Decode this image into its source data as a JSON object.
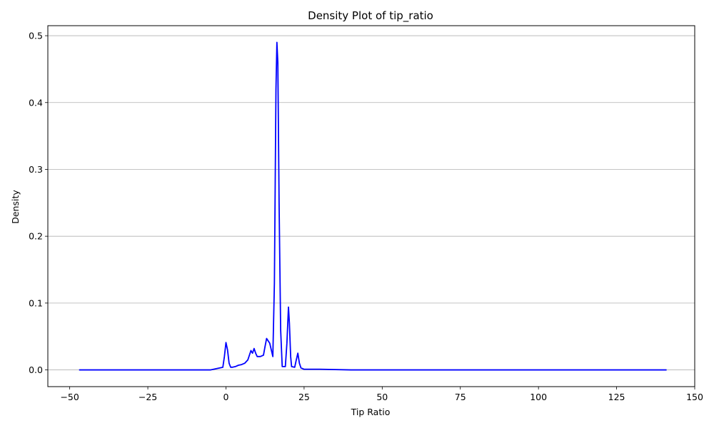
{
  "chart_data": {
    "type": "line",
    "title": "Density Plot of tip_ratio",
    "xlabel": "Tip Ratio",
    "ylabel": "Density",
    "xlim": [
      -57,
      150
    ],
    "ylim": [
      -0.025,
      0.515
    ],
    "xticks": [
      -50,
      -25,
      0,
      25,
      50,
      75,
      100,
      125,
      150
    ],
    "xtick_labels": [
      "−50",
      "−25",
      "0",
      "25",
      "50",
      "75",
      "100",
      "125",
      "150"
    ],
    "yticks": [
      0.0,
      0.1,
      0.2,
      0.3,
      0.4,
      0.5
    ],
    "ytick_labels": [
      "0.0",
      "0.1",
      "0.2",
      "0.3",
      "0.4",
      "0.5"
    ],
    "grid": "y",
    "legend": "none",
    "series": [
      {
        "color": "#0000ff",
        "x": [
          -47,
          -20,
          -5,
          -1,
          -0.5,
          0,
          0.5,
          1,
          1.5,
          2,
          3,
          4,
          5,
          6,
          7,
          8,
          8.5,
          9,
          9.5,
          10,
          11,
          12,
          12.5,
          13,
          14,
          14.5,
          15,
          15.5,
          16,
          16.3,
          16.6,
          17,
          17.5,
          18,
          19,
          19.5,
          20,
          20.3,
          20.7,
          21,
          22,
          22.5,
          23,
          23.5,
          24,
          25,
          30,
          40,
          60,
          100,
          141
        ],
        "y": [
          0.0,
          0.0,
          0.0,
          0.004,
          0.02,
          0.041,
          0.03,
          0.01,
          0.004,
          0.004,
          0.005,
          0.007,
          0.008,
          0.01,
          0.015,
          0.029,
          0.025,
          0.032,
          0.025,
          0.02,
          0.02,
          0.022,
          0.035,
          0.047,
          0.04,
          0.03,
          0.02,
          0.13,
          0.42,
          0.49,
          0.46,
          0.25,
          0.06,
          0.005,
          0.005,
          0.04,
          0.094,
          0.07,
          0.02,
          0.005,
          0.004,
          0.015,
          0.025,
          0.01,
          0.003,
          0.001,
          0.001,
          0.0,
          0.0,
          0.0,
          0.0
        ]
      }
    ]
  }
}
